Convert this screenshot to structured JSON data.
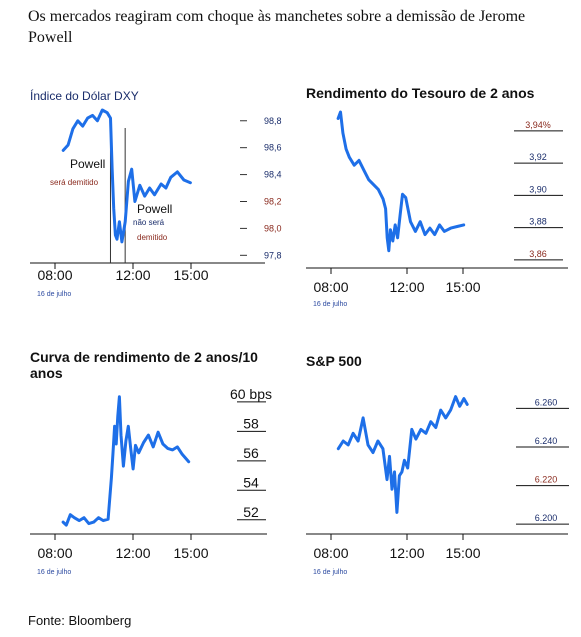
{
  "headline": "Os mercados reagiram com choque às manchetes sobre a demissão de Jerome Powell",
  "source": "Fonte: Bloomberg",
  "colors": {
    "line": "#1e6fe8",
    "tick_blue": "#1a2d6b",
    "tick_red": "#8a2a1e",
    "axis": "#111111"
  },
  "chart_data": [
    {
      "type": "line",
      "title": "Índice do Dólar DXY",
      "x_ticks": [
        "08:00",
        "12:00",
        "15:00"
      ],
      "x_sublabel": "16 de julho",
      "y_ticks": [
        {
          "value": 98.8,
          "label": "98,8",
          "color": "#1a2d6b"
        },
        {
          "value": 98.6,
          "label": "98,6",
          "color": "#1a2d6b"
        },
        {
          "value": 98.4,
          "label": "98,4",
          "color": "#1a2d6b"
        },
        {
          "value": 98.2,
          "label": "98,2",
          "color": "#8a2a1e"
        },
        {
          "value": 98.0,
          "label": "98,0",
          "color": "#8a2a1e"
        },
        {
          "value": 97.8,
          "label": "97,8",
          "color": "#1a2d6b"
        }
      ],
      "ylim": [
        97.78,
        98.88
      ],
      "xlim": [
        7.5,
        17.0
      ],
      "events": [
        {
          "x": 10.9,
          "label_main": "Powell",
          "label_sub": "será demitido"
        },
        {
          "x": 11.8,
          "label_main": "Powell",
          "label_main2": "não será",
          "label_sub": "demitido"
        }
      ],
      "x": [
        8.0,
        8.3,
        8.6,
        8.9,
        9.2,
        9.5,
        9.8,
        10.1,
        10.4,
        10.7,
        10.9,
        11.0,
        11.1,
        11.2,
        11.3,
        11.45,
        11.6,
        11.8,
        12.0,
        12.2,
        12.4,
        12.7,
        13.0,
        13.3,
        13.6,
        14.0,
        14.3,
        14.6,
        15.0,
        15.4,
        15.8
      ],
      "y": [
        98.58,
        98.62,
        98.74,
        98.8,
        98.76,
        98.82,
        98.84,
        98.8,
        98.88,
        98.86,
        98.82,
        98.45,
        98.15,
        97.95,
        97.92,
        98.05,
        97.9,
        98.05,
        98.35,
        98.44,
        98.2,
        98.32,
        98.24,
        98.3,
        98.25,
        98.33,
        98.3,
        98.38,
        98.42,
        98.36,
        98.34
      ]
    },
    {
      "type": "line",
      "title": "Rendimento do Tesouro de 2 anos",
      "x_ticks": [
        "08:00",
        "12:00",
        "15:00"
      ],
      "x_sublabel": "16 de julho",
      "y_ticks": [
        {
          "value": 3.94,
          "label": "3,94%",
          "color": "#8a2a1e"
        },
        {
          "value": 3.92,
          "label": "3,92",
          "color": "#1a2d6b"
        },
        {
          "value": 3.9,
          "label": "3,90",
          "color": "#1a2d6b"
        },
        {
          "value": 3.88,
          "label": "3,88",
          "color": "#1a2d6b"
        },
        {
          "value": 3.86,
          "label": "3,86",
          "color": "#8a2a1e"
        }
      ],
      "ylim": [
        3.855,
        3.948
      ],
      "xlim": [
        7.5,
        17.0
      ],
      "x": [
        8.0,
        8.15,
        8.3,
        8.5,
        8.7,
        9.0,
        9.3,
        9.6,
        9.9,
        10.2,
        10.5,
        10.8,
        10.95,
        11.05,
        11.15,
        11.25,
        11.4,
        11.55,
        11.7,
        11.85,
        12.0,
        12.2,
        12.5,
        12.8,
        13.1,
        13.4,
        13.7,
        14.0,
        14.3,
        14.6,
        15.0,
        15.4,
        15.8
      ],
      "y": [
        3.944,
        3.948,
        3.935,
        3.925,
        3.92,
        3.915,
        3.918,
        3.912,
        3.906,
        3.903,
        3.9,
        3.894,
        3.888,
        3.87,
        3.862,
        3.875,
        3.868,
        3.878,
        3.87,
        3.884,
        3.897,
        3.895,
        3.88,
        3.874,
        3.88,
        3.872,
        3.876,
        3.872,
        3.878,
        3.874,
        3.876,
        3.877,
        3.878
      ]
    },
    {
      "type": "line",
      "title": "Curva de rendimento de 2 anos/10 anos",
      "x_ticks": [
        "08:00",
        "12:00",
        "15:00"
      ],
      "x_sublabel": "16 de julho",
      "y_ticks": [
        {
          "value": 60,
          "label": "60 bps",
          "color": "#8a2a1e"
        },
        {
          "value": 58,
          "label": "58",
          "color": "#111111"
        },
        {
          "value": 56,
          "label": "56",
          "color": "#111111"
        },
        {
          "value": 54,
          "label": "54",
          "color": "#111111"
        },
        {
          "value": 52,
          "label": "52",
          "color": "#111111"
        }
      ],
      "ylim": [
        50.9,
        60.6
      ],
      "xlim": [
        7.5,
        17.0
      ],
      "x": [
        8.0,
        8.2,
        8.45,
        8.7,
        9.0,
        9.3,
        9.6,
        9.9,
        10.2,
        10.5,
        10.8,
        11.0,
        11.1,
        11.2,
        11.3,
        11.4,
        11.5,
        11.6,
        11.75,
        11.9,
        12.05,
        12.2,
        12.35,
        12.5,
        12.7,
        13.0,
        13.3,
        13.6,
        13.9,
        14.2,
        14.5,
        14.8,
        15.1,
        15.4,
        15.8
      ],
      "y": [
        51.3,
        51.1,
        51.8,
        51.6,
        51.4,
        51.6,
        51.2,
        51.3,
        51.6,
        51.4,
        51.5,
        54.3,
        56.0,
        57.8,
        56.6,
        58.5,
        59.8,
        57.2,
        55.1,
        56.8,
        57.8,
        56.3,
        54.9,
        56.5,
        56.0,
        56.7,
        57.2,
        56.4,
        57.4,
        56.6,
        56.3,
        56.2,
        56.4,
        55.9,
        55.4
      ]
    },
    {
      "type": "line",
      "title": "S&P 500",
      "x_ticks": [
        "08:00",
        "12:00",
        "15:00"
      ],
      "x_sublabel": "16 de julho",
      "y_ticks": [
        {
          "value": 6260,
          "label": "6.260",
          "color": "#1a2d6b"
        },
        {
          "value": 6240,
          "label": "6.240",
          "color": "#1a2d6b"
        },
        {
          "value": 6220,
          "label": "6.220",
          "color": "#8a2a1e"
        },
        {
          "value": 6200,
          "label": "6.200",
          "color": "#1a2d6b"
        }
      ],
      "ylim": [
        6198,
        6268
      ],
      "xlim": [
        7.5,
        17.0
      ],
      "x": [
        8.0,
        8.3,
        8.6,
        8.9,
        9.2,
        9.5,
        9.8,
        10.1,
        10.4,
        10.7,
        10.95,
        11.1,
        11.25,
        11.4,
        11.55,
        11.7,
        11.85,
        12.0,
        12.2,
        12.45,
        12.7,
        13.0,
        13.3,
        13.6,
        13.9,
        14.2,
        14.5,
        14.8,
        15.1,
        15.35,
        15.6,
        15.8
      ],
      "y": [
        6236,
        6240,
        6238,
        6244,
        6240,
        6252,
        6238,
        6234,
        6240,
        6236,
        6220,
        6232,
        6215,
        6224,
        6203,
        6222,
        6224,
        6230,
        6226,
        6246,
        6241,
        6246,
        6244,
        6250,
        6247,
        6256,
        6252,
        6256,
        6263,
        6258,
        6262,
        6259
      ]
    }
  ]
}
